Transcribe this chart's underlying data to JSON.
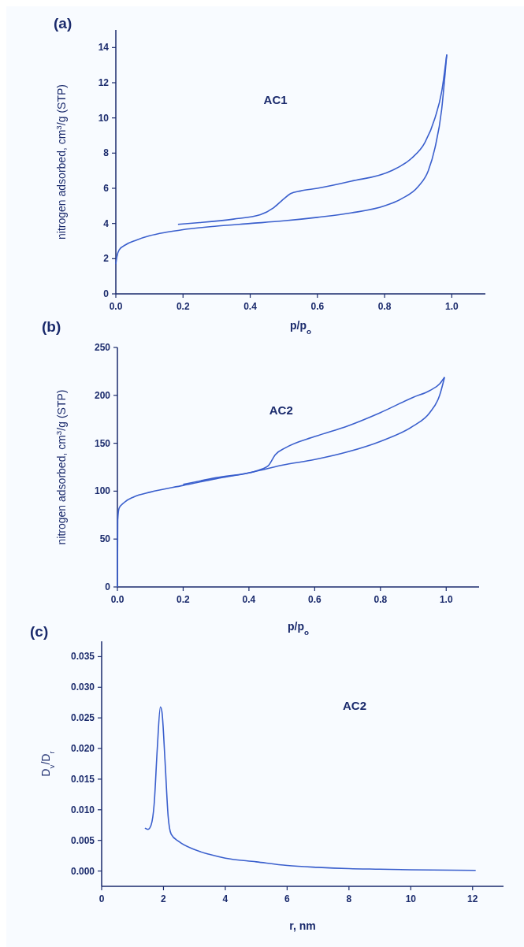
{
  "chart_data": [
    {
      "type": "line",
      "title": "(a)",
      "xlabel": "p/p$_{o}$",
      "ylabel": "nitrogen adsorbed, cm$^{3}$/g (STP)",
      "annotations": [
        "AC1"
      ],
      "xlim": [
        0,
        1.1
      ],
      "ylim": [
        0,
        15
      ],
      "xticks": [
        {
          "value": 0,
          "label": "0.0"
        },
        {
          "value": 0.2,
          "label": "0.2"
        },
        {
          "value": 0.4,
          "label": "0.4"
        },
        {
          "value": 0.6,
          "label": "0.6"
        },
        {
          "value": 0.8,
          "label": "0.8"
        },
        {
          "value": 1,
          "label": "1.0"
        }
      ],
      "yticks": [
        0,
        2,
        4,
        6,
        8,
        10,
        12,
        14
      ],
      "grid": false,
      "marker": "none",
      "line_style": "solid",
      "series": [
        {
          "color": "#3a5fcd",
          "x": [
            0,
            0.003,
            0.01,
            0.03,
            0.06,
            0.1,
            0.15,
            0.2,
            0.3,
            0.4,
            0.5,
            0.6,
            0.7,
            0.8,
            0.85,
            0.9,
            0.93,
            0.95,
            0.97,
            0.98,
            0.985
          ],
          "values": [
            1.7,
            2.1,
            2.5,
            2.8,
            3.05,
            3.3,
            3.5,
            3.65,
            3.85,
            4.0,
            4.15,
            4.35,
            4.6,
            5.0,
            5.4,
            6.1,
            7.0,
            8.3,
            10.5,
            12.5,
            13.6
          ]
        },
        {
          "color": "#3a5fcd",
          "x": [
            0.985,
            0.97,
            0.95,
            0.92,
            0.88,
            0.82,
            0.7,
            0.6,
            0.55,
            0.52,
            0.5,
            0.47,
            0.43,
            0.35,
            0.25,
            0.185
          ],
          "values": [
            13.6,
            11.5,
            10.0,
            8.6,
            7.7,
            7.0,
            6.4,
            6.0,
            5.85,
            5.7,
            5.4,
            4.9,
            4.5,
            4.25,
            4.05,
            3.95
          ]
        }
      ]
    },
    {
      "type": "line",
      "title": "(b)",
      "xlabel": "p/p$_{o}$",
      "ylabel": "nitrogen adsorbed, cm$^{3}$/g (STP)",
      "annotations": [
        "AC2"
      ],
      "xlim": [
        0,
        1.1
      ],
      "ylim": [
        0,
        250
      ],
      "xticks": [
        {
          "value": 0,
          "label": "0.0"
        },
        {
          "value": 0.2,
          "label": "0.2"
        },
        {
          "value": 0.4,
          "label": "0.4"
        },
        {
          "value": 0.6,
          "label": "0.6"
        },
        {
          "value": 0.8,
          "label": "0.8"
        },
        {
          "value": 1,
          "label": "1.0"
        }
      ],
      "yticks": [
        0,
        50,
        100,
        150,
        200,
        250
      ],
      "grid": false,
      "marker": "none",
      "line_style": "solid",
      "series": [
        {
          "color": "#3a5fcd",
          "x": [
            0,
            0.001,
            0.005,
            0.02,
            0.05,
            0.1,
            0.2,
            0.3,
            0.4,
            0.45,
            0.5,
            0.6,
            0.7,
            0.8,
            0.9,
            0.95,
            0.98,
            0.995
          ],
          "values": [
            0,
            70,
            82,
            88,
            94,
            99,
            106,
            113,
            119,
            123,
            127,
            133,
            141,
            152,
            168,
            182,
            200,
            219
          ]
        },
        {
          "color": "#3a5fcd",
          "x": [
            0.995,
            0.98,
            0.95,
            0.9,
            0.8,
            0.7,
            0.6,
            0.51,
            0.48,
            0.46,
            0.43,
            0.3,
            0.2
          ],
          "values": [
            219,
            212,
            205,
            198,
            182,
            168,
            157,
            145,
            138,
            127,
            122,
            114,
            107
          ]
        }
      ]
    },
    {
      "type": "line",
      "title": "(c)",
      "xlabel": "r, nm",
      "ylabel": "D$_{v}$/D$_{r}$",
      "annotations": [
        "AC2"
      ],
      "xlim": [
        0,
        13
      ],
      "ylim": [
        -0.0025,
        0.0375
      ],
      "xticks": [
        0,
        2,
        4,
        6,
        8,
        10,
        12
      ],
      "yticks": [
        {
          "value": 0,
          "label": "0.000"
        },
        {
          "value": 0.005,
          "label": "0.005"
        },
        {
          "value": 0.01,
          "label": "0.010"
        },
        {
          "value": 0.015,
          "label": "0.015"
        },
        {
          "value": 0.02,
          "label": "0.020"
        },
        {
          "value": 0.025,
          "label": "0.025"
        },
        {
          "value": 0.03,
          "label": "0.030"
        },
        {
          "value": 0.035,
          "label": "0.035"
        }
      ],
      "grid": false,
      "marker": "none",
      "line_style": "solid",
      "series": [
        {
          "color": "#3a5fcd",
          "x": [
            1.4,
            1.5,
            1.6,
            1.7,
            1.8,
            1.9,
            1.95,
            2.05,
            2.15,
            2.25,
            2.5,
            3,
            3.5,
            4,
            5,
            6,
            7,
            8,
            9,
            10,
            12.1
          ],
          "values": [
            0.007,
            0.0068,
            0.0075,
            0.011,
            0.02,
            0.0268,
            0.026,
            0.018,
            0.009,
            0.006,
            0.0048,
            0.0035,
            0.0027,
            0.0021,
            0.0015,
            0.0009,
            0.0006,
            0.0004,
            0.0003,
            0.0002,
            0.0001
          ]
        }
      ]
    }
  ]
}
